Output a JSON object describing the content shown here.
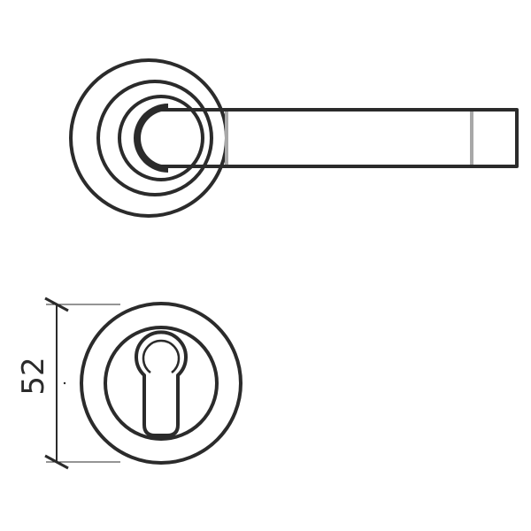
{
  "colors": {
    "line": "#2b2b2b",
    "accent": "#a8a8a8",
    "background": "#ffffff"
  },
  "dimension": {
    "value": "52"
  }
}
